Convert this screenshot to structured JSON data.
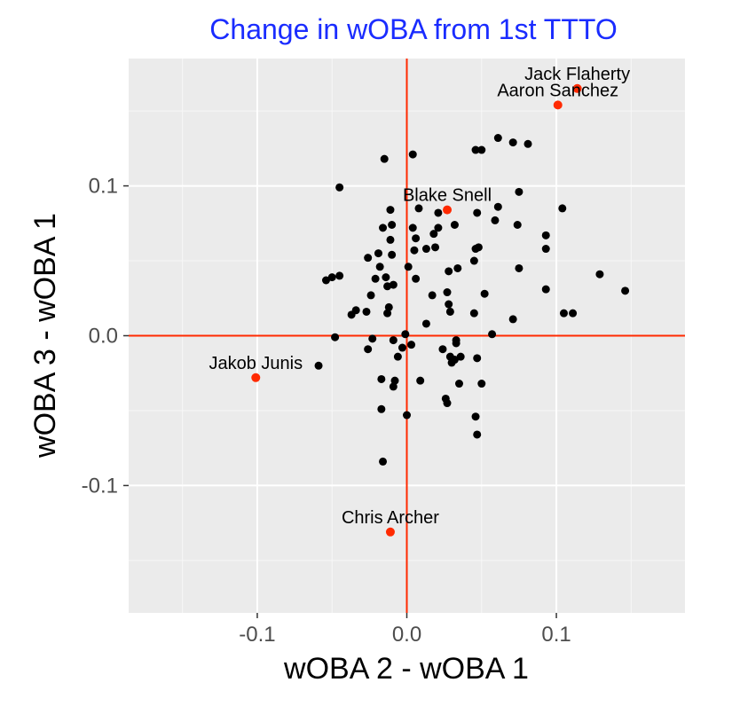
{
  "chart_data": {
    "type": "scatter",
    "title": "Change in wOBA from 1st TTTO",
    "xlabel": "wOBA 2 - wOBA 1",
    "ylabel": "wOBA 3 - wOBA 1",
    "xlim": [
      -0.186,
      0.186
    ],
    "ylim": [
      -0.185,
      0.185
    ],
    "x_ticks": [
      {
        "value": -0.1,
        "label": "-0.1"
      },
      {
        "value": 0.0,
        "label": "0.0"
      },
      {
        "value": 0.1,
        "label": "0.1"
      }
    ],
    "y_ticks": [
      {
        "value": 0.1,
        "label": "0.1"
      },
      {
        "value": 0.0,
        "label": "0.0"
      },
      {
        "value": -0.1,
        "label": "-0.1"
      }
    ],
    "grid": true,
    "reference_lines": {
      "x": 0,
      "y": 0,
      "color": "#ff2a00"
    },
    "colors": {
      "title": "#1a2cff",
      "panel_background": "#ebebeb",
      "grid_major": "#ffffff",
      "point_default": "#000000",
      "point_highlight": "#ff2a00"
    },
    "highlighted_points": [
      {
        "label": "Jack Flaherty",
        "x": 0.114,
        "y": 0.165
      },
      {
        "label": "Aaron Sanchez",
        "x": 0.101,
        "y": 0.154
      },
      {
        "label": "Blake Snell",
        "x": 0.027,
        "y": 0.084
      },
      {
        "label": "Jakob Junis",
        "x": -0.101,
        "y": -0.028
      },
      {
        "label": "Chris Archer",
        "x": -0.011,
        "y": -0.131
      }
    ],
    "points": [
      {
        "x": 0.061,
        "y": 0.132
      },
      {
        "x": 0.071,
        "y": 0.129
      },
      {
        "x": 0.081,
        "y": 0.128
      },
      {
        "x": 0.046,
        "y": 0.124
      },
      {
        "x": 0.05,
        "y": 0.124
      },
      {
        "x": -0.015,
        "y": 0.118
      },
      {
        "x": 0.004,
        "y": 0.121
      },
      {
        "x": -0.045,
        "y": 0.099
      },
      {
        "x": 0.075,
        "y": 0.096
      },
      {
        "x": -0.011,
        "y": 0.084
      },
      {
        "x": 0.008,
        "y": 0.085
      },
      {
        "x": 0.021,
        "y": 0.082
      },
      {
        "x": 0.047,
        "y": 0.082
      },
      {
        "x": 0.061,
        "y": 0.086
      },
      {
        "x": 0.104,
        "y": 0.085
      },
      {
        "x": -0.016,
        "y": 0.072
      },
      {
        "x": -0.01,
        "y": 0.074
      },
      {
        "x": 0.004,
        "y": 0.072
      },
      {
        "x": 0.021,
        "y": 0.072
      },
      {
        "x": 0.032,
        "y": 0.074
      },
      {
        "x": 0.059,
        "y": 0.077
      },
      {
        "x": 0.074,
        "y": 0.074
      },
      {
        "x": -0.011,
        "y": 0.064
      },
      {
        "x": 0.006,
        "y": 0.065
      },
      {
        "x": 0.018,
        "y": 0.068
      },
      {
        "x": 0.093,
        "y": 0.067
      },
      {
        "x": 0.048,
        "y": 0.059
      },
      {
        "x": 0.093,
        "y": 0.058
      },
      {
        "x": 0.005,
        "y": 0.057
      },
      {
        "x": 0.013,
        "y": 0.058
      },
      {
        "x": 0.019,
        "y": 0.059
      },
      {
        "x": 0.046,
        "y": 0.058
      },
      {
        "x": -0.026,
        "y": 0.052
      },
      {
        "x": -0.019,
        "y": 0.055
      },
      {
        "x": -0.01,
        "y": 0.054
      },
      {
        "x": 0.045,
        "y": 0.05
      },
      {
        "x": 0.075,
        "y": 0.045
      },
      {
        "x": -0.018,
        "y": 0.046
      },
      {
        "x": 0.001,
        "y": 0.046
      },
      {
        "x": 0.028,
        "y": 0.043
      },
      {
        "x": 0.034,
        "y": 0.045
      },
      {
        "x": -0.054,
        "y": 0.037
      },
      {
        "x": -0.05,
        "y": 0.039
      },
      {
        "x": -0.045,
        "y": 0.04
      },
      {
        "x": -0.021,
        "y": 0.038
      },
      {
        "x": -0.014,
        "y": 0.039
      },
      {
        "x": 0.006,
        "y": 0.038
      },
      {
        "x": 0.129,
        "y": 0.041
      },
      {
        "x": -0.013,
        "y": 0.033
      },
      {
        "x": -0.009,
        "y": 0.034
      },
      {
        "x": 0.093,
        "y": 0.031
      },
      {
        "x": 0.146,
        "y": 0.03
      },
      {
        "x": -0.024,
        "y": 0.027
      },
      {
        "x": 0.017,
        "y": 0.027
      },
      {
        "x": 0.027,
        "y": 0.029
      },
      {
        "x": 0.052,
        "y": 0.028
      },
      {
        "x": -0.034,
        "y": 0.017
      },
      {
        "x": -0.012,
        "y": 0.019
      },
      {
        "x": 0.028,
        "y": 0.021
      },
      {
        "x": -0.037,
        "y": 0.014
      },
      {
        "x": -0.027,
        "y": 0.016
      },
      {
        "x": -0.013,
        "y": 0.015
      },
      {
        "x": 0.029,
        "y": 0.016
      },
      {
        "x": 0.045,
        "y": 0.015
      },
      {
        "x": 0.105,
        "y": 0.015
      },
      {
        "x": 0.111,
        "y": 0.015
      },
      {
        "x": 0.071,
        "y": 0.011
      },
      {
        "x": 0.013,
        "y": 0.008
      },
      {
        "x": -0.048,
        "y": -0.001
      },
      {
        "x": -0.001,
        "y": 0.001
      },
      {
        "x": 0.057,
        "y": 0.001
      },
      {
        "x": -0.023,
        "y": -0.002
      },
      {
        "x": -0.009,
        "y": -0.003
      },
      {
        "x": 0.033,
        "y": -0.003
      },
      {
        "x": 0.003,
        "y": -0.006
      },
      {
        "x": 0.033,
        "y": -0.005
      },
      {
        "x": -0.026,
        "y": -0.009
      },
      {
        "x": -0.003,
        "y": -0.008
      },
      {
        "x": 0.024,
        "y": -0.009
      },
      {
        "x": -0.006,
        "y": -0.014
      },
      {
        "x": 0.029,
        "y": -0.014
      },
      {
        "x": 0.032,
        "y": -0.016
      },
      {
        "x": 0.036,
        "y": -0.014
      },
      {
        "x": 0.047,
        "y": -0.015
      },
      {
        "x": -0.059,
        "y": -0.02
      },
      {
        "x": 0.03,
        "y": -0.018
      },
      {
        "x": -0.017,
        "y": -0.029
      },
      {
        "x": -0.008,
        "y": -0.03
      },
      {
        "x": 0.009,
        "y": -0.03
      },
      {
        "x": -0.009,
        "y": -0.034
      },
      {
        "x": 0.035,
        "y": -0.032
      },
      {
        "x": 0.05,
        "y": -0.032
      },
      {
        "x": -0.017,
        "y": -0.049
      },
      {
        "x": 0.026,
        "y": -0.042
      },
      {
        "x": 0.027,
        "y": -0.045
      },
      {
        "x": 0.046,
        "y": -0.054
      },
      {
        "x": 0.047,
        "y": -0.066
      },
      {
        "x": 0.0,
        "y": -0.053
      },
      {
        "x": -0.016,
        "y": -0.084
      }
    ]
  }
}
